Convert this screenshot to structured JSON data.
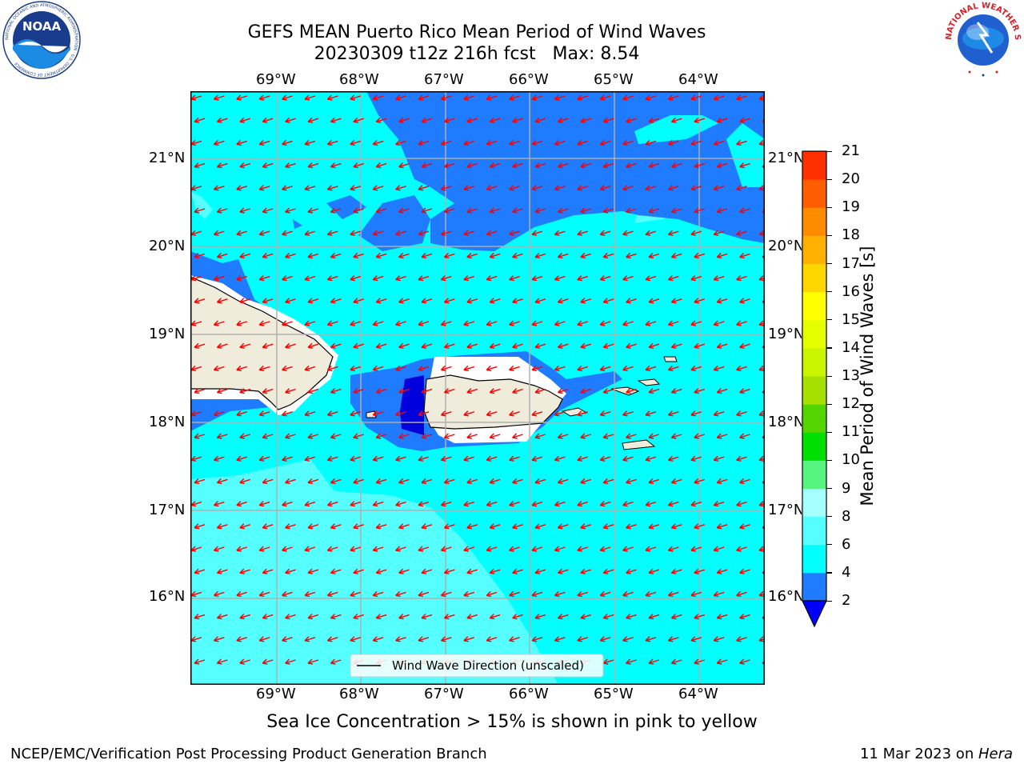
{
  "header": {
    "title_line1": "GEFS MEAN Puerto Rico Mean Period of Wind Waves",
    "title_line2": "20230309 t12z 216h fcst   Max: 8.54"
  },
  "logos": {
    "left": {
      "name": "NOAA",
      "ring_text": "NATIONAL OCEANIC AND ATMOSPHERIC ADMINISTRATION · U.S. DEPARTMENT OF COMMERCE ·",
      "icon": "noaa-logo"
    },
    "right": {
      "name": "NATIONAL WEATHER SERVICE",
      "icon": "nws-logo"
    }
  },
  "map": {
    "lon_labels": [
      "69°W",
      "68°W",
      "67°W",
      "66°W",
      "65°W",
      "64°W"
    ],
    "lat_labels": [
      "21°N",
      "20°N",
      "19°N",
      "18°N",
      "17°N",
      "16°N"
    ],
    "legend_label": "Wind Wave Direction (unscaled)",
    "arrow_color": "#ff0000",
    "ocean_color": "#00ffff",
    "land_color": "#efecdc"
  },
  "colorbar": {
    "label": "Mean Period of Wind Waves [s]",
    "ticks": [
      "2",
      "4",
      "6",
      "8",
      "9",
      "10",
      "11",
      "12",
      "13",
      "14",
      "15",
      "16",
      "17",
      "18",
      "19",
      "20",
      "21"
    ],
    "colors": [
      "#1f7bff",
      "#00ffff",
      "#55ffff",
      "#a6ffff",
      "#55f580",
      "#00e000",
      "#55d500",
      "#a6e000",
      "#caf500",
      "#e6ff00",
      "#ffff00",
      "#ffd700",
      "#ffb000",
      "#ff8c00",
      "#ff5e00",
      "#ff3000",
      "#ff0000"
    ],
    "underflow_color": "#0000ff"
  },
  "note": "Sea Ice Concentration > 15% is shown in pink to yellow",
  "footer": {
    "left": "NCEP/EMC/Verification Post Processing Product Generation Branch",
    "date": "11 Mar 2023 on ",
    "machine": "Hera"
  }
}
